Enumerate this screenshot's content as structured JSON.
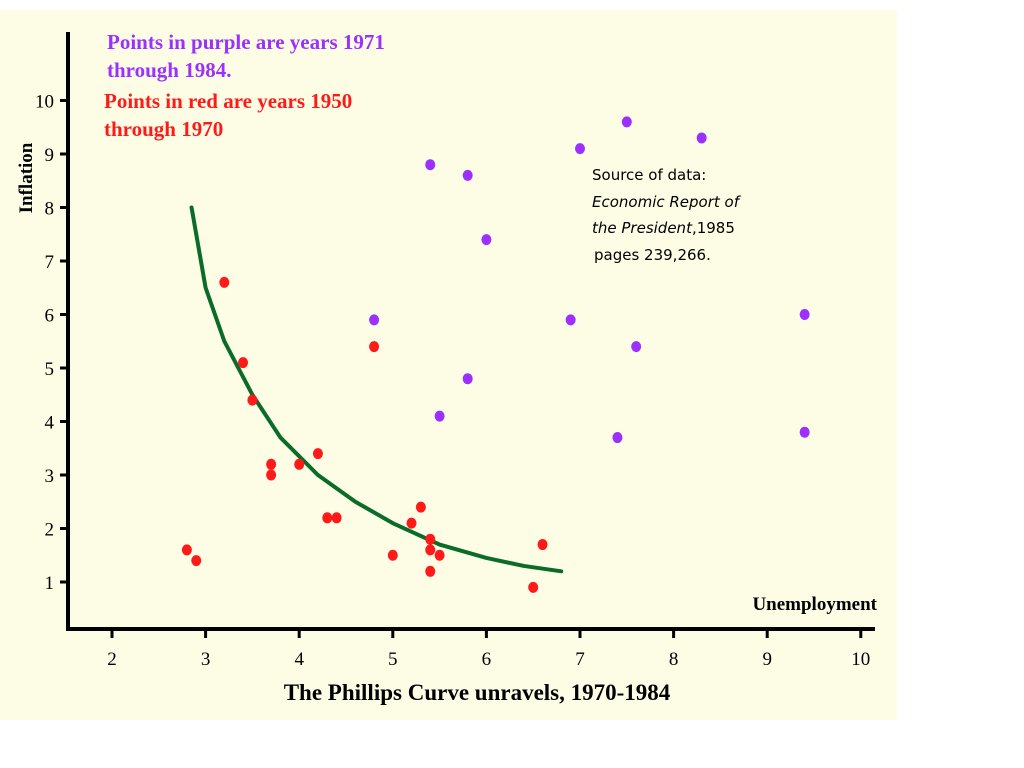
{
  "chart_data": {
    "type": "scatter",
    "title": "The Phillips Curve unravels, 1970-1984",
    "xlabel": "Unemployment",
    "ylabel": "Inflation",
    "xlim": [
      1.5,
      10.2
    ],
    "ylim": [
      0,
      10.5
    ],
    "x_ticks": [
      2,
      3,
      4,
      5,
      6,
      7,
      8,
      9,
      10
    ],
    "y_ticks": [
      1,
      2,
      3,
      4,
      5,
      6,
      7,
      8,
      9,
      10
    ],
    "grid": false,
    "legend": {
      "placement": "top-left",
      "entries": [
        {
          "text": "Points in purple are years 1971",
          "color": "#9b30ff"
        },
        {
          "text": "through 1984.",
          "color": "#9b30ff"
        },
        {
          "text": "Points in red are years 1950",
          "color": "#ff1a1a"
        },
        {
          "text": "through 1970",
          "color": "#ff1a1a"
        }
      ]
    },
    "annotation": {
      "line1": "Source of data:",
      "line2": "Economic Report of",
      "line3_italic": "the President",
      "line3_rest": ",1985",
      "line4": "pages 239,266."
    },
    "series": [
      {
        "color": "#ff1a1a",
        "points": [
          [
            2.8,
            1.6
          ],
          [
            2.9,
            1.4
          ],
          [
            3.2,
            6.6
          ],
          [
            3.4,
            5.1
          ],
          [
            3.5,
            4.4
          ],
          [
            3.7,
            3.2
          ],
          [
            3.7,
            3.0
          ],
          [
            4.0,
            3.2
          ],
          [
            4.2,
            3.4
          ],
          [
            4.3,
            2.2
          ],
          [
            4.4,
            2.2
          ],
          [
            4.8,
            5.4
          ],
          [
            5.0,
            1.5
          ],
          [
            5.2,
            2.1
          ],
          [
            5.3,
            2.4
          ],
          [
            5.4,
            1.8
          ],
          [
            5.4,
            1.6
          ],
          [
            5.4,
            1.2
          ],
          [
            5.5,
            1.5
          ],
          [
            6.5,
            0.9
          ],
          [
            6.6,
            1.7
          ]
        ]
      },
      {
        "color": "#9b30ff",
        "points": [
          [
            4.8,
            5.9
          ],
          [
            5.4,
            8.8
          ],
          [
            5.5,
            4.1
          ],
          [
            5.8,
            8.6
          ],
          [
            5.8,
            4.8
          ],
          [
            6.0,
            7.4
          ],
          [
            6.9,
            5.9
          ],
          [
            7.0,
            9.1
          ],
          [
            7.4,
            3.7
          ],
          [
            7.5,
            9.6
          ],
          [
            7.6,
            5.4
          ],
          [
            8.3,
            9.3
          ],
          [
            9.4,
            6.0
          ],
          [
            9.4,
            3.8
          ]
        ]
      }
    ],
    "curve": {
      "color": "#0b6b2b",
      "points": [
        [
          2.85,
          8.0
        ],
        [
          3.0,
          6.5
        ],
        [
          3.2,
          5.5
        ],
        [
          3.5,
          4.5
        ],
        [
          3.8,
          3.7
        ],
        [
          4.2,
          3.0
        ],
        [
          4.6,
          2.5
        ],
        [
          5.0,
          2.1
        ],
        [
          5.5,
          1.7
        ],
        [
          6.0,
          1.45
        ],
        [
          6.4,
          1.3
        ],
        [
          6.8,
          1.2
        ]
      ]
    }
  }
}
